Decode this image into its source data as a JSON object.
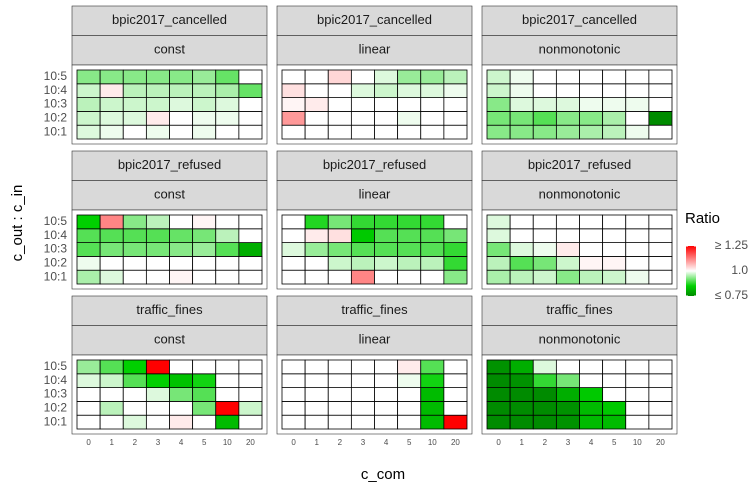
{
  "chart_data": {
    "type": "heatmap",
    "x_label": "c_com",
    "y_label": "c_out : c_in",
    "x_categories": [
      "0",
      "1",
      "2",
      "3",
      "4",
      "5",
      "10",
      "20"
    ],
    "y_categories": [
      "10:1",
      "10:2",
      "10:3",
      "10:4",
      "10:5"
    ],
    "legend_title": "Ratio",
    "legend_ticks": [
      {
        "value": 1.25,
        "label": "≥ 1.25"
      },
      {
        "value": 1.0,
        "label": "1.0"
      },
      {
        "value": 0.75,
        "label": "≤ 0.75"
      }
    ],
    "color_stops": [
      [
        0.75,
        "#008b00"
      ],
      [
        0.85,
        "#00d000"
      ],
      [
        1.0,
        "#ffffff"
      ],
      [
        1.25,
        "#ff0000"
      ]
    ],
    "facets": [
      {
        "dataset": "bpic2017_cancelled",
        "method": "const",
        "values": [
          [
            0.98,
            0.99,
            1.0,
            0.99,
            1.0,
            0.99,
            1.0,
            1.0
          ],
          [
            0.97,
            0.98,
            0.98,
            1.02,
            1.0,
            0.99,
            0.99,
            1.0
          ],
          [
            0.96,
            0.97,
            0.97,
            0.97,
            0.98,
            0.97,
            0.98,
            1.0
          ],
          [
            0.97,
            1.02,
            0.96,
            0.96,
            0.96,
            0.96,
            0.95,
            0.91
          ],
          [
            0.93,
            0.93,
            0.93,
            0.93,
            0.93,
            0.94,
            0.91,
            1.0
          ]
        ]
      },
      {
        "dataset": "bpic2017_cancelled",
        "method": "linear",
        "values": [
          [
            1.0,
            1.0,
            1.0,
            1.0,
            1.0,
            1.0,
            1.0,
            1.0
          ],
          [
            1.1,
            1.0,
            1.0,
            1.0,
            1.0,
            0.99,
            1.0,
            1.0
          ],
          [
            1.01,
            1.02,
            1.0,
            1.0,
            1.0,
            1.0,
            1.0,
            1.0
          ],
          [
            1.03,
            1.0,
            1.0,
            0.98,
            0.97,
            0.98,
            0.98,
            0.99
          ],
          [
            1.0,
            1.0,
            1.04,
            1.0,
            0.98,
            0.94,
            0.94,
            0.96
          ]
        ]
      },
      {
        "dataset": "bpic2017_cancelled",
        "method": "nonmonotonic",
        "values": [
          [
            0.93,
            0.93,
            0.93,
            0.94,
            0.95,
            0.96,
            0.99,
            1.0
          ],
          [
            0.92,
            0.92,
            0.9,
            0.93,
            0.93,
            0.95,
            1.0,
            0.75
          ],
          [
            0.93,
            0.98,
            0.98,
            0.98,
            0.99,
            0.99,
            0.99,
            1.0
          ],
          [
            0.97,
            0.99,
            1.0,
            1.0,
            1.0,
            1.0,
            1.0,
            1.0
          ],
          [
            0.97,
            0.99,
            1.0,
            1.0,
            1.0,
            1.0,
            1.0,
            1.0
          ]
        ]
      },
      {
        "dataset": "bpic2017_refused",
        "method": "const",
        "values": [
          [
            0.95,
            0.98,
            1.0,
            1.0,
            1.01,
            1.0,
            1.0,
            1.0
          ],
          [
            0.99,
            1.0,
            1.0,
            1.0,
            1.0,
            1.0,
            1.0,
            1.0
          ],
          [
            0.9,
            0.92,
            0.92,
            0.92,
            0.93,
            0.94,
            0.9,
            0.8
          ],
          [
            0.9,
            0.9,
            0.9,
            0.9,
            0.91,
            0.92,
            0.96,
            1.0
          ],
          [
            0.85,
            1.12,
            0.93,
            0.96,
            1.0,
            1.01,
            1.0,
            1.0
          ]
        ]
      },
      {
        "dataset": "bpic2017_refused",
        "method": "linear",
        "values": [
          [
            1.0,
            1.0,
            1.0,
            1.12,
            1.0,
            1.0,
            1.0,
            0.93
          ],
          [
            1.0,
            1.0,
            0.97,
            0.96,
            0.97,
            0.96,
            0.96,
            0.88
          ],
          [
            0.98,
            0.94,
            0.92,
            0.9,
            0.9,
            0.9,
            0.9,
            0.88
          ],
          [
            1.0,
            1.02,
            1.03,
            0.84,
            0.9,
            0.9,
            0.9,
            0.92
          ],
          [
            1.0,
            0.87,
            0.92,
            0.88,
            0.88,
            0.88,
            0.88,
            1.0
          ]
        ]
      },
      {
        "dataset": "bpic2017_refused",
        "method": "nonmonotonic",
        "values": [
          [
            0.95,
            0.96,
            0.97,
            0.93,
            0.96,
            0.97,
            0.99,
            1.0
          ],
          [
            0.96,
            0.9,
            0.92,
            0.97,
            1.01,
            1.01,
            1.0,
            1.0
          ],
          [
            0.92,
            0.98,
            0.99,
            1.02,
            1.0,
            1.0,
            1.0,
            1.0
          ],
          [
            0.98,
            1.0,
            1.0,
            1.0,
            1.0,
            1.0,
            1.0,
            1.0
          ],
          [
            0.98,
            1.0,
            1.0,
            1.0,
            1.0,
            1.0,
            1.0,
            1.0
          ]
        ]
      },
      {
        "dataset": "traffic_fines",
        "method": "const",
        "values": [
          [
            1.0,
            1.0,
            0.98,
            1.0,
            1.02,
            1.0,
            0.82,
            1.0
          ],
          [
            1.0,
            0.96,
            1.0,
            1.0,
            1.0,
            0.92,
            1.25,
            0.97
          ],
          [
            1.0,
            1.0,
            1.0,
            0.98,
            0.92,
            0.9,
            1.0,
            1.0
          ],
          [
            0.98,
            0.97,
            0.9,
            0.85,
            0.83,
            0.86,
            1.0,
            1.0
          ],
          [
            0.94,
            0.9,
            0.85,
            1.25,
            1.0,
            1.0,
            1.0,
            1.0
          ]
        ]
      },
      {
        "dataset": "traffic_fines",
        "method": "linear",
        "values": [
          [
            1.0,
            1.0,
            1.0,
            1.0,
            1.0,
            1.0,
            0.82,
            1.25
          ],
          [
            1.0,
            1.0,
            1.0,
            1.0,
            1.0,
            1.0,
            0.82,
            1.0
          ],
          [
            1.0,
            1.0,
            1.0,
            1.0,
            1.0,
            1.0,
            0.82,
            1.0
          ],
          [
            1.0,
            1.0,
            1.0,
            1.0,
            1.0,
            0.99,
            0.86,
            1.0
          ],
          [
            1.0,
            1.0,
            1.0,
            1.0,
            1.0,
            1.02,
            0.9,
            1.0
          ]
        ]
      },
      {
        "dataset": "traffic_fines",
        "method": "nonmonotonic",
        "values": [
          [
            0.72,
            0.72,
            0.72,
            0.76,
            0.82,
            0.82,
            1.0,
            1.0
          ],
          [
            0.72,
            0.72,
            0.72,
            0.76,
            0.82,
            0.84,
            1.0,
            1.0
          ],
          [
            0.72,
            0.73,
            0.74,
            0.8,
            0.84,
            1.0,
            1.0,
            1.0
          ],
          [
            0.74,
            0.76,
            0.88,
            0.92,
            1.0,
            1.0,
            1.0,
            1.0
          ],
          [
            0.76,
            0.8,
            0.98,
            1.0,
            1.0,
            1.0,
            1.0,
            1.0
          ]
        ]
      }
    ]
  }
}
